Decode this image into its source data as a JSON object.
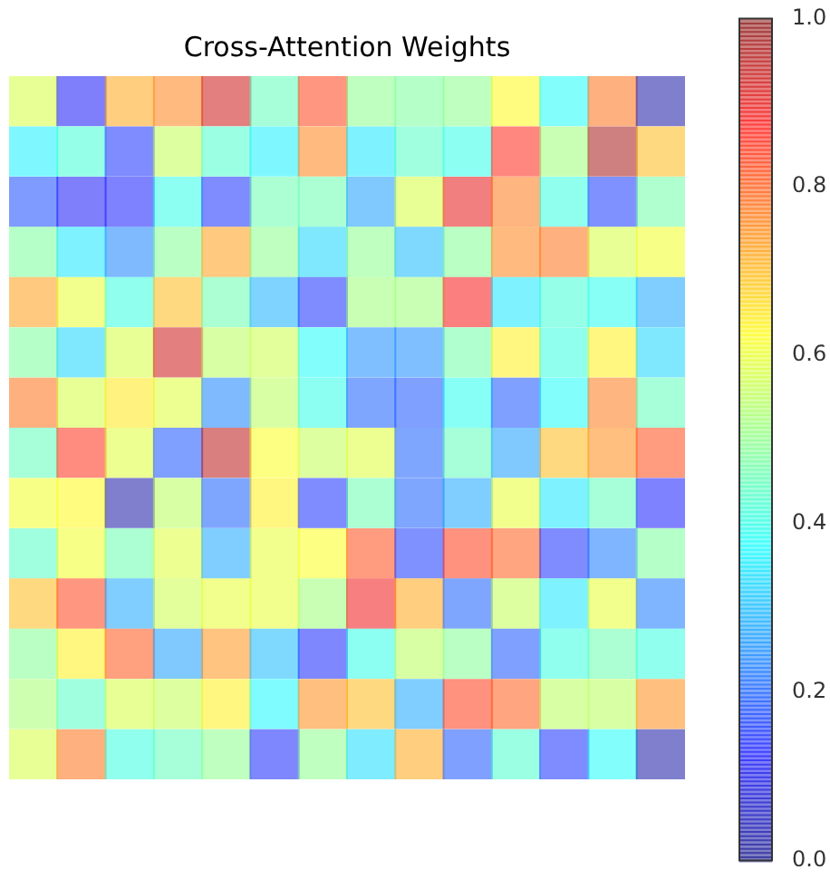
{
  "chart_data": {
    "type": "heatmap",
    "title": "Cross-Attention Weights",
    "categories": [
      null,
      null,
      null,
      null,
      null,
      null,
      null,
      null,
      null,
      null,
      null,
      null,
      null,
      null
    ],
    "y_categories": [
      null,
      null,
      null,
      null,
      null,
      null,
      null,
      null,
      null,
      null,
      null,
      null,
      null,
      null
    ],
    "cells": [
      [
        0.58,
        0.12,
        0.72,
        0.76,
        0.93,
        0.45,
        0.83,
        0.5,
        0.48,
        0.5,
        0.63,
        0.38,
        0.78,
        0.03
      ],
      [
        0.36,
        0.42,
        0.15,
        0.56,
        0.43,
        0.36,
        0.76,
        0.35,
        0.44,
        0.4,
        0.86,
        0.52,
        0.97,
        0.7
      ],
      [
        0.18,
        0.12,
        0.13,
        0.4,
        0.15,
        0.46,
        0.46,
        0.27,
        0.58,
        0.9,
        0.77,
        0.41,
        0.16,
        0.47
      ],
      [
        0.48,
        0.35,
        0.24,
        0.49,
        0.73,
        0.5,
        0.33,
        0.5,
        0.3,
        0.49,
        0.76,
        0.78,
        0.58,
        0.61
      ],
      [
        0.73,
        0.6,
        0.41,
        0.7,
        0.46,
        0.29,
        0.15,
        0.52,
        0.52,
        0.88,
        0.35,
        0.42,
        0.39,
        0.28
      ],
      [
        0.48,
        0.33,
        0.58,
        0.93,
        0.55,
        0.57,
        0.38,
        0.25,
        0.25,
        0.47,
        0.64,
        0.41,
        0.64,
        0.33
      ],
      [
        0.78,
        0.58,
        0.65,
        0.59,
        0.24,
        0.55,
        0.4,
        0.2,
        0.19,
        0.39,
        0.19,
        0.38,
        0.77,
        0.45
      ],
      [
        0.45,
        0.85,
        0.59,
        0.19,
        0.95,
        0.62,
        0.56,
        0.59,
        0.2,
        0.45,
        0.27,
        0.7,
        0.75,
        0.82
      ],
      [
        0.61,
        0.63,
        0.03,
        0.55,
        0.2,
        0.64,
        0.15,
        0.46,
        0.2,
        0.28,
        0.6,
        0.35,
        0.45,
        0.13
      ],
      [
        0.44,
        0.61,
        0.46,
        0.59,
        0.28,
        0.6,
        0.62,
        0.82,
        0.16,
        0.84,
        0.8,
        0.15,
        0.23,
        0.48
      ],
      [
        0.7,
        0.83,
        0.28,
        0.57,
        0.6,
        0.6,
        0.52,
        0.89,
        0.72,
        0.2,
        0.56,
        0.35,
        0.6,
        0.23
      ],
      [
        0.49,
        0.64,
        0.81,
        0.27,
        0.74,
        0.3,
        0.14,
        0.4,
        0.55,
        0.49,
        0.19,
        0.41,
        0.46,
        0.41
      ],
      [
        0.53,
        0.44,
        0.58,
        0.56,
        0.64,
        0.37,
        0.75,
        0.7,
        0.28,
        0.84,
        0.8,
        0.55,
        0.55,
        0.75
      ],
      [
        0.58,
        0.78,
        0.41,
        0.45,
        0.5,
        0.14,
        0.5,
        0.34,
        0.72,
        0.19,
        0.43,
        0.15,
        0.38,
        0.03
      ]
    ],
    "clim": [
      0,
      1
    ],
    "cticks": [
      {
        "value": 0,
        "label": "0.0"
      },
      {
        "value": 0.2,
        "label": "0.2"
      },
      {
        "value": 0.4,
        "label": "0.4"
      },
      {
        "value": 0.6,
        "label": "0.6"
      },
      {
        "value": 0.8,
        "label": "0.8"
      },
      {
        "value": 1,
        "label": "1.0"
      }
    ]
  }
}
